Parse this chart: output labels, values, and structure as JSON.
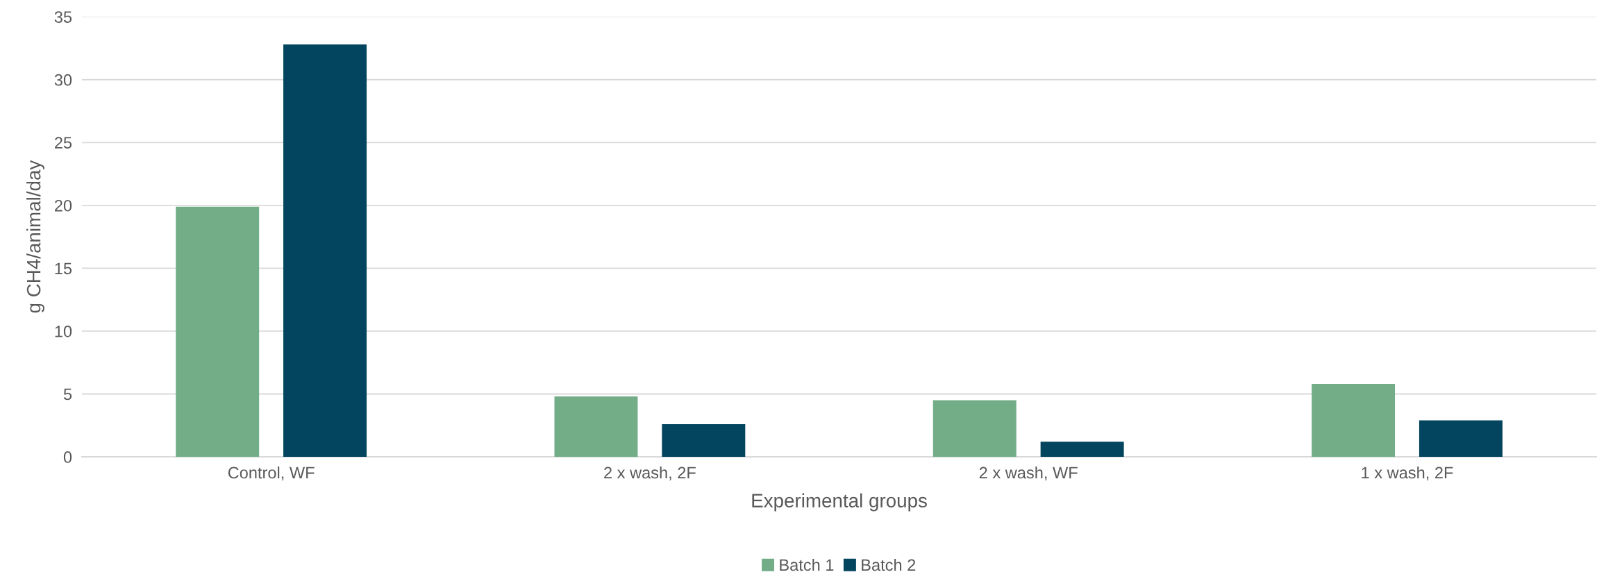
{
  "chart_data": {
    "type": "bar",
    "xlabel": "Experimental groups",
    "ylabel": "g CH4/animal/day",
    "categories": [
      "Control, WF",
      "2 x wash, 2F",
      "2 x wash, WF",
      "1 x wash, 2F"
    ],
    "series": [
      {
        "name": "Batch 1",
        "color": "#73ad88",
        "values": [
          19.9,
          4.8,
          4.5,
          5.8
        ]
      },
      {
        "name": "Batch 2",
        "color": "#03445e",
        "values": [
          32.8,
          2.6,
          1.2,
          2.9
        ]
      }
    ],
    "ylim": [
      0,
      35
    ],
    "yticks": [
      0,
      5,
      10,
      15,
      20,
      25,
      30,
      35
    ],
    "grid": "y",
    "legend": "bottom"
  }
}
